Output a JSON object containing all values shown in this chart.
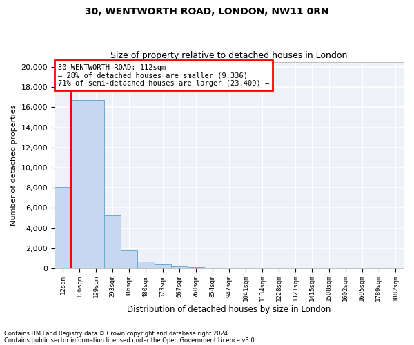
{
  "title1": "30, WENTWORTH ROAD, LONDON, NW11 0RN",
  "title2": "Size of property relative to detached houses in London",
  "xlabel": "Distribution of detached houses by size in London",
  "ylabel": "Number of detached properties",
  "categories": [
    "12sqm",
    "106sqm",
    "199sqm",
    "293sqm",
    "386sqm",
    "480sqm",
    "573sqm",
    "667sqm",
    "760sqm",
    "854sqm",
    "947sqm",
    "1041sqm",
    "1134sqm",
    "1228sqm",
    "1321sqm",
    "1415sqm",
    "1508sqm",
    "1602sqm",
    "1695sqm",
    "1789sqm",
    "1882sqm"
  ],
  "values": [
    8050,
    16700,
    16700,
    5300,
    1780,
    700,
    400,
    240,
    160,
    100,
    60,
    40,
    28,
    18,
    12,
    8,
    6,
    4,
    3,
    2,
    1
  ],
  "bar_color": "#c5d8f0",
  "bar_edge_color": "#6aabd2",
  "red_line_x": 1.0,
  "annotation_title": "30 WENTWORTH ROAD: 112sqm",
  "annotation_line1": "← 28% of detached houses are smaller (9,336)",
  "annotation_line2": "71% of semi-detached houses are larger (23,409) →",
  "ylim": [
    0,
    20500
  ],
  "yticks": [
    0,
    2000,
    4000,
    6000,
    8000,
    10000,
    12000,
    14000,
    16000,
    18000,
    20000
  ],
  "footnote1": "Contains HM Land Registry data © Crown copyright and database right 2024.",
  "footnote2": "Contains public sector information licensed under the Open Government Licence v3.0.",
  "plot_bg_color": "#eef2f8"
}
